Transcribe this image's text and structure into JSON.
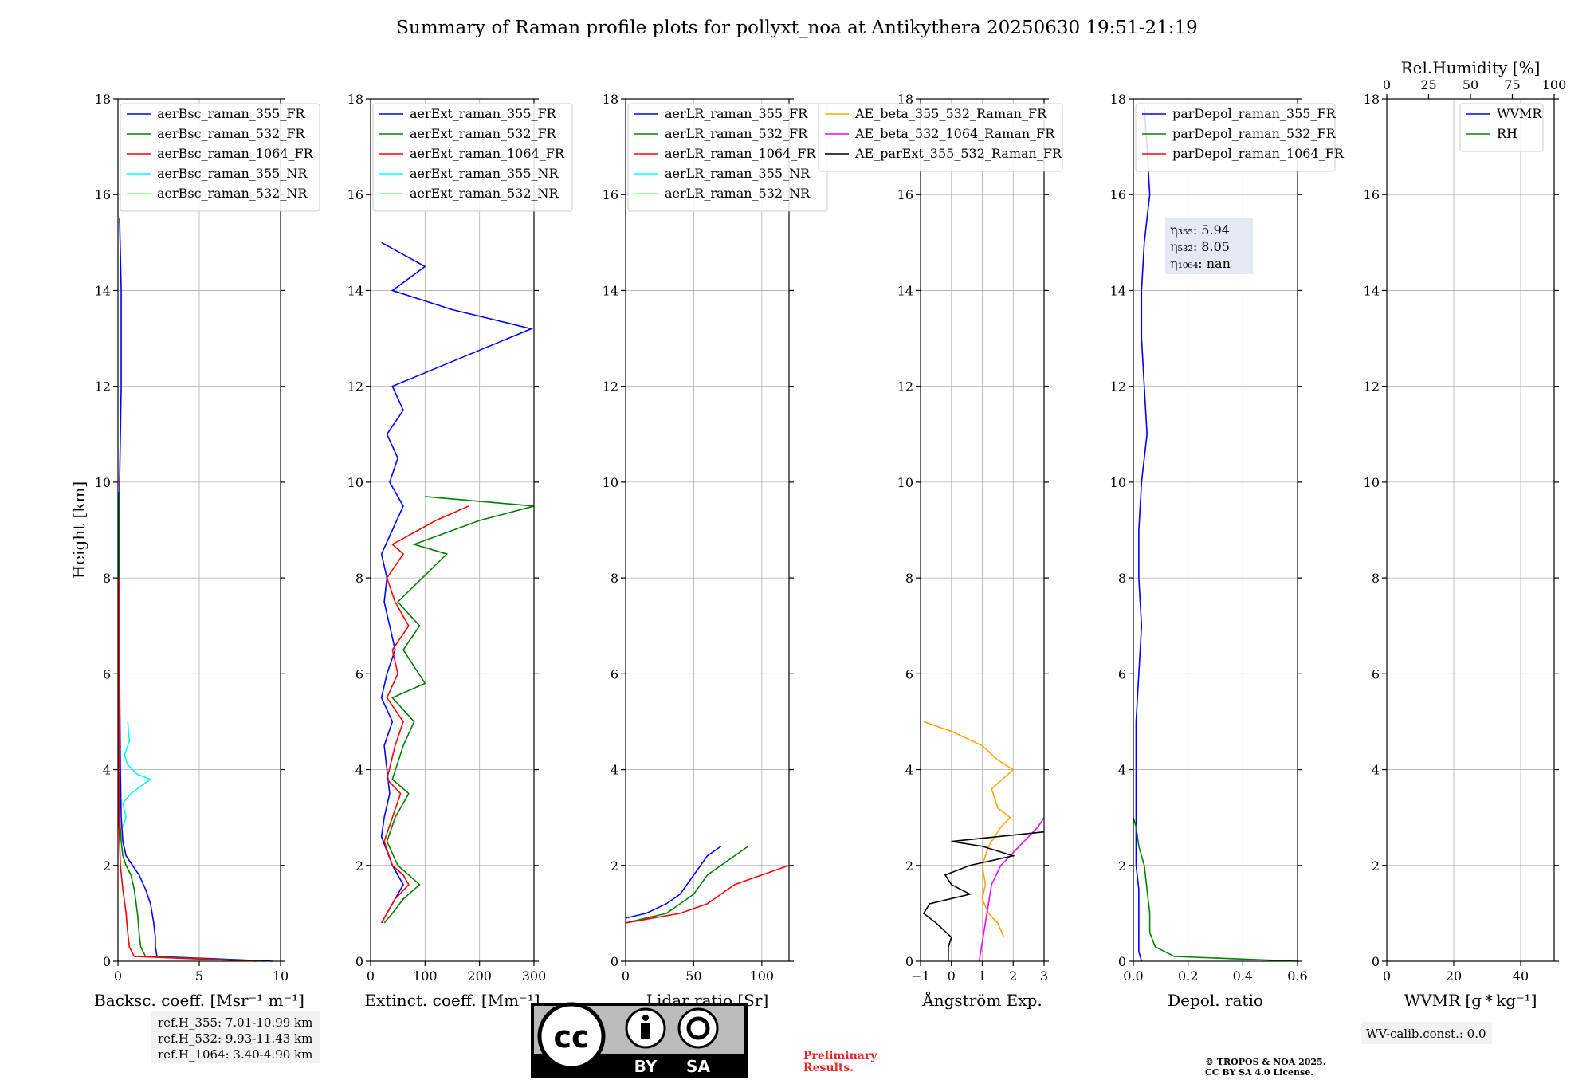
{
  "title": "Summary of Raman profile plots for pollyxt_noa at Antikythera 20250630 19:51-21:19",
  "chart_data": [
    {
      "type": "line",
      "id": "bsc",
      "ylabel": "Height [km]",
      "xlabel": "Backsc. coeff. [Msr⁻¹ m⁻¹]",
      "xlim": [
        0,
        10
      ],
      "ylim": [
        0,
        18
      ],
      "xticks": [
        "0",
        "5",
        "10"
      ],
      "yticks": [
        "0",
        "2",
        "4",
        "6",
        "8",
        "10",
        "12",
        "14",
        "16",
        "18"
      ],
      "grid": true,
      "legend": "top-left",
      "series": [
        {
          "name": "aerBsc_raman_355_FR",
          "color": "#0000ff",
          "y": [
            0.0,
            0.1,
            0.3,
            0.5,
            0.8,
            1.0,
            1.2,
            1.5,
            1.8,
            2.0,
            2.2,
            2.5,
            3.0,
            4.0,
            6.0,
            8.0,
            10.0,
            12.0,
            14.0,
            15.5
          ],
          "x": [
            9.5,
            2.4,
            2.3,
            2.3,
            2.2,
            2.1,
            2.0,
            1.7,
            1.3,
            0.9,
            0.5,
            0.3,
            0.2,
            0.15,
            0.1,
            0.1,
            0.1,
            0.2,
            0.2,
            0.1
          ]
        },
        {
          "name": "aerBsc_raman_532_FR",
          "color": "#008000",
          "y": [
            0.0,
            0.1,
            0.3,
            0.6,
            1.0,
            1.5,
            1.8,
            2.0,
            2.2,
            2.5,
            3.0,
            4.0,
            6.0,
            8.0,
            9.8
          ],
          "x": [
            9.0,
            1.7,
            1.4,
            1.3,
            1.2,
            1.0,
            0.8,
            0.5,
            0.3,
            0.2,
            0.1,
            0.1,
            0.05,
            0.05,
            0.05
          ]
        },
        {
          "name": "aerBsc_raman_1064_FR",
          "color": "#ff0000",
          "y": [
            0.0,
            0.1,
            0.3,
            0.6,
            1.0,
            1.5,
            2.0,
            2.5,
            3.0,
            4.0,
            6.0,
            8.0
          ],
          "x": [
            8.5,
            1.0,
            0.7,
            0.6,
            0.5,
            0.3,
            0.15,
            0.1,
            0.05,
            0.05,
            0.05,
            0.05
          ]
        },
        {
          "name": "aerBsc_raman_355_NR",
          "color": "#00ffff",
          "y": [
            2.8,
            3.0,
            3.3,
            3.5,
            3.7,
            3.8,
            3.9,
            4.1,
            4.3,
            4.6,
            5.0
          ],
          "x": [
            0.3,
            0.5,
            0.3,
            0.8,
            1.6,
            2.0,
            1.2,
            0.6,
            0.4,
            0.7,
            0.6
          ]
        },
        {
          "name": "aerBsc_raman_532_NR",
          "color": "#7fff7f",
          "y": [],
          "x": []
        }
      ],
      "annotations": []
    },
    {
      "type": "line",
      "id": "ext",
      "ylabel": "",
      "xlabel": "Extinct. coeff. [Mm⁻¹]",
      "xlim": [
        0,
        300
      ],
      "ylim": [
        0,
        18
      ],
      "xticks": [
        "0",
        "100",
        "200",
        "300"
      ],
      "yticks": [
        "0",
        "2",
        "4",
        "6",
        "8",
        "10",
        "12",
        "14",
        "16",
        "18"
      ],
      "grid": true,
      "legend": "top-left",
      "series": [
        {
          "name": "aerExt_raman_355_FR",
          "color": "#0000ff",
          "y": [
            0.8,
            1.0,
            1.3,
            1.6,
            1.8,
            2.0,
            2.3,
            2.6,
            3.0,
            3.5,
            4.0,
            4.5,
            5.0,
            5.5,
            6.0,
            6.5,
            7.0,
            7.5,
            8.0,
            8.5,
            9.0,
            9.5,
            10.0,
            10.5,
            11.0,
            11.5,
            12.0,
            13.2,
            13.6,
            14.0,
            14.5,
            15.0
          ],
          "x": [
            20,
            30,
            45,
            60,
            50,
            40,
            30,
            20,
            25,
            35,
            30,
            25,
            40,
            20,
            30,
            45,
            35,
            25,
            30,
            20,
            40,
            60,
            35,
            50,
            30,
            60,
            40,
            295,
            150,
            40,
            100,
            20
          ]
        },
        {
          "name": "aerExt_raman_532_FR",
          "color": "#008000",
          "y": [
            0.8,
            1.0,
            1.3,
            1.6,
            1.8,
            2.0,
            2.5,
            3.0,
            3.5,
            3.8,
            4.5,
            5.0,
            5.5,
            5.8,
            6.5,
            7.0,
            7.5,
            8.5,
            8.7,
            9.2,
            9.5,
            9.7
          ],
          "x": [
            25,
            40,
            60,
            90,
            70,
            50,
            30,
            45,
            70,
            40,
            60,
            80,
            40,
            100,
            60,
            90,
            50,
            140,
            80,
            200,
            300,
            100
          ]
        },
        {
          "name": "aerExt_raman_1064_FR",
          "color": "#ff0000",
          "y": [
            0.8,
            1.0,
            1.3,
            1.6,
            1.8,
            2.0,
            2.5,
            3.0,
            3.5,
            3.8,
            4.5,
            5.0,
            5.5,
            6.0,
            6.5,
            7.0,
            7.5,
            8.0,
            8.5,
            8.7,
            9.2,
            9.5
          ],
          "x": [
            20,
            30,
            45,
            70,
            60,
            40,
            25,
            40,
            55,
            30,
            45,
            60,
            30,
            50,
            40,
            70,
            45,
            30,
            60,
            40,
            120,
            180
          ]
        },
        {
          "name": "aerExt_raman_355_NR",
          "color": "#00ffff",
          "y": [],
          "x": []
        },
        {
          "name": "aerExt_raman_532_NR",
          "color": "#7fff7f",
          "y": [],
          "x": []
        }
      ],
      "annotations": []
    },
    {
      "type": "line",
      "id": "lr",
      "ylabel": "",
      "xlabel": "Lidar ratio [Sr]",
      "xlim": [
        0,
        120
      ],
      "ylim": [
        0,
        18
      ],
      "xticks": [
        "0",
        "50",
        "100"
      ],
      "yticks": [
        "0",
        "2",
        "4",
        "6",
        "8",
        "10",
        "12",
        "14",
        "16",
        "18"
      ],
      "grid": true,
      "legend": "top-left",
      "series": [
        {
          "name": "aerLR_raman_355_FR",
          "color": "#0000ff",
          "y": [
            0.9,
            1.0,
            1.2,
            1.4,
            1.6,
            1.8,
            2.0,
            2.2,
            2.4
          ],
          "x": [
            0,
            15,
            30,
            40,
            45,
            50,
            55,
            60,
            70
          ]
        },
        {
          "name": "aerLR_raman_532_FR",
          "color": "#008000",
          "y": [
            0.8,
            1.0,
            1.2,
            1.4,
            1.6,
            1.8,
            2.0,
            2.2,
            2.4
          ],
          "x": [
            0,
            30,
            40,
            50,
            55,
            60,
            70,
            80,
            90
          ]
        },
        {
          "name": "aerLR_raman_1064_FR",
          "color": "#ff0000",
          "y": [
            0.8,
            1.0,
            1.2,
            1.4,
            1.6,
            1.8,
            2.0
          ],
          "x": [
            0,
            40,
            60,
            70,
            80,
            100,
            120
          ]
        },
        {
          "name": "aerLR_raman_355_NR",
          "color": "#00ffff",
          "y": [],
          "x": []
        },
        {
          "name": "aerLR_raman_532_NR",
          "color": "#7fff7f",
          "y": [],
          "x": []
        }
      ],
      "annotations": []
    },
    {
      "type": "line",
      "id": "ae",
      "ylabel": "",
      "xlabel": "Ångström Exp.",
      "xlim": [
        -1,
        3
      ],
      "ylim": [
        0,
        18
      ],
      "xticks": [
        "−1",
        "0",
        "1",
        "2",
        "3"
      ],
      "yticks": [
        "0",
        "2",
        "4",
        "6",
        "8",
        "10",
        "12",
        "14",
        "16",
        "18"
      ],
      "grid": true,
      "legend": "top-left",
      "series": [
        {
          "name": "AE_beta_355_532_Raman_FR",
          "color": "#ffa500",
          "y": [
            0.5,
            0.8,
            1.0,
            1.3,
            1.6,
            2.0,
            2.4,
            2.8,
            3.0,
            3.2,
            3.6,
            4.0,
            4.2,
            4.5,
            4.8,
            5.0
          ],
          "x": [
            1.7,
            1.5,
            1.2,
            1.0,
            1.1,
            1.0,
            1.2,
            1.6,
            1.9,
            1.5,
            1.3,
            2.0,
            1.5,
            1.0,
            0.0,
            -0.9
          ]
        },
        {
          "name": "AE_beta_532_1064_Raman_FR",
          "color": "#ff00ff",
          "y": [
            0.0,
            0.4,
            0.8,
            1.2,
            1.6,
            2.0,
            2.4,
            2.8,
            3.0
          ],
          "x": [
            0.9,
            1.0,
            1.1,
            1.2,
            1.3,
            1.6,
            2.2,
            2.8,
            3.0
          ]
        },
        {
          "name": "AE_parExt_355_532_Raman_FR",
          "color": "#000000",
          "y": [
            0.0,
            0.3,
            0.5,
            0.8,
            1.0,
            1.2,
            1.4,
            1.6,
            1.8,
            2.0,
            2.2,
            2.4,
            2.5,
            2.7
          ],
          "x": [
            -0.1,
            -0.1,
            0.0,
            -0.5,
            -0.9,
            -0.7,
            0.6,
            0.0,
            -0.2,
            0.6,
            2.0,
            1.0,
            0.0,
            3.0
          ]
        }
      ],
      "annotations": []
    },
    {
      "type": "line",
      "id": "depol",
      "ylabel": "",
      "xlabel": "Depol. ratio",
      "xlim": [
        0,
        0.6
      ],
      "ylim": [
        0,
        18
      ],
      "xticks": [
        "0.0",
        "0.2",
        "0.4",
        "0.6"
      ],
      "yticks": [
        "0",
        "2",
        "4",
        "6",
        "8",
        "10",
        "12",
        "14",
        "16",
        "18"
      ],
      "grid": true,
      "legend": "top-left",
      "series": [
        {
          "name": "parDepol_raman_355_FR",
          "color": "#0000ff",
          "y": [
            0.0,
            0.2,
            0.5,
            1.0,
            1.5,
            2.0,
            3.0,
            4.0,
            5.0,
            6.0,
            7.0,
            8.0,
            9.0,
            10.0,
            11.0,
            12.0,
            13.0,
            14.0,
            15.0,
            16.0,
            17.0,
            17.8
          ],
          "x": [
            0.03,
            0.02,
            0.02,
            0.02,
            0.02,
            0.01,
            0.01,
            0.01,
            0.01,
            0.02,
            0.03,
            0.02,
            0.02,
            0.03,
            0.05,
            0.04,
            0.03,
            0.03,
            0.04,
            0.06,
            0.05,
            0.04
          ]
        },
        {
          "name": "parDepol_raman_532_FR",
          "color": "#008000",
          "y": [
            0.0,
            0.1,
            0.3,
            0.6,
            1.0,
            1.5,
            2.0,
            2.4,
            2.8,
            3.0
          ],
          "x": [
            0.6,
            0.15,
            0.08,
            0.06,
            0.06,
            0.05,
            0.04,
            0.02,
            0.01,
            0.0
          ]
        },
        {
          "name": "parDepol_raman_1064_FR",
          "color": "#ff0000",
          "y": [],
          "x": []
        }
      ],
      "annotations": [
        "η₃₅₅: 5.94",
        "η₅₃₂: 8.05",
        "η₁₀₆₄: nan"
      ]
    },
    {
      "type": "line",
      "id": "wv",
      "ylabel": "",
      "xlabel": "WVMR [g * kg⁻¹]",
      "toplabel": "Rel.Humidity [%]",
      "xlim": [
        0,
        50
      ],
      "ylim": [
        0,
        18
      ],
      "xticks": [
        "0",
        "20",
        "40"
      ],
      "topticks": [
        "0",
        "25",
        "50",
        "75",
        "100"
      ],
      "yticks": [
        "0",
        "2",
        "4",
        "6",
        "8",
        "10",
        "12",
        "14",
        "16",
        "18"
      ],
      "grid": true,
      "legend": "top-right",
      "series": [
        {
          "name": "WVMR",
          "color": "#0000ff",
          "y": [],
          "x": []
        },
        {
          "name": "RH",
          "color": "#008000",
          "y": [],
          "x": []
        }
      ],
      "annotations": []
    }
  ],
  "refh": [
    "ref.H_355: 7.01-10.99 km",
    "ref.H_532: 9.93-11.43 km",
    "ref.H_1064: 3.40-4.90 km"
  ],
  "wv_calib": "WV-calib.const.: 0.0",
  "license_badge": {
    "by": "BY",
    "sa": "SA",
    "cc": "cc"
  },
  "preliminary": [
    "Preliminary",
    "Results."
  ],
  "copyright": [
    "© TROPOS & NOA 2025.",
    "CC BY SA 4.0 License."
  ]
}
